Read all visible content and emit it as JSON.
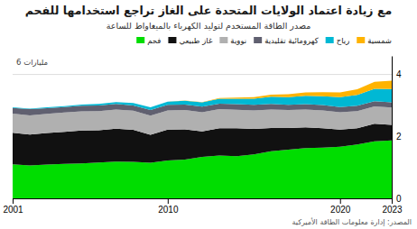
{
  "chart_data": {
    "type": "area",
    "title": "مع زيادة اعتماد الولايات المتحدة على الغاز تراجع استخدامها للفحم",
    "subtitle": "مصدر الطاقة المستخدم لتوليد الكهرباء بالميغاواط للساعة",
    "ylabel": "6 مليارات",
    "source": "المصدر: إدارة معلومات الطاقة الأميركية",
    "x": [
      2001,
      2002,
      2003,
      2004,
      2005,
      2006,
      2007,
      2008,
      2009,
      2010,
      2011,
      2012,
      2013,
      2014,
      2015,
      2016,
      2017,
      2018,
      2019,
      2020,
      2021,
      2022,
      2023
    ],
    "series": [
      {
        "name": "فحم",
        "color": "#00dd00",
        "values": [
          1.1,
          1.06,
          1.09,
          1.11,
          1.13,
          1.16,
          1.19,
          1.18,
          1.15,
          1.22,
          1.25,
          1.34,
          1.38,
          1.36,
          1.42,
          1.52,
          1.57,
          1.62,
          1.64,
          1.67,
          1.74,
          1.84,
          1.87
        ]
      },
      {
        "name": "غاز طبيعي",
        "color": "#111111",
        "values": [
          1.02,
          1.0,
          1.02,
          1.04,
          1.06,
          1.04,
          1.06,
          1.03,
          0.9,
          1.0,
          0.98,
          0.82,
          0.88,
          0.9,
          0.82,
          0.75,
          0.7,
          0.67,
          0.62,
          0.55,
          0.52,
          0.57,
          0.5
        ]
      },
      {
        "name": "نووية",
        "color": "#b0b0b0",
        "values": [
          0.62,
          0.62,
          0.62,
          0.62,
          0.62,
          0.62,
          0.62,
          0.62,
          0.62,
          0.62,
          0.62,
          0.62,
          0.62,
          0.6,
          0.6,
          0.6,
          0.58,
          0.58,
          0.58,
          0.56,
          0.56,
          0.56,
          0.56
        ]
      },
      {
        "name": "كهرومائية تقليدية",
        "color": "#606070",
        "values": [
          0.18,
          0.2,
          0.18,
          0.18,
          0.18,
          0.18,
          0.18,
          0.17,
          0.18,
          0.18,
          0.18,
          0.18,
          0.18,
          0.18,
          0.18,
          0.18,
          0.17,
          0.17,
          0.17,
          0.17,
          0.17,
          0.17,
          0.17
        ]
      },
      {
        "name": "رياح",
        "color": "#00b8d4",
        "values": [
          0.02,
          0.02,
          0.03,
          0.03,
          0.04,
          0.05,
          0.06,
          0.08,
          0.09,
          0.1,
          0.12,
          0.14,
          0.16,
          0.18,
          0.2,
          0.23,
          0.25,
          0.27,
          0.29,
          0.32,
          0.35,
          0.4,
          0.43
        ]
      },
      {
        "name": "شمسية",
        "color": "#ffb300",
        "values": [
          0.0,
          0.0,
          0.0,
          0.0,
          0.0,
          0.0,
          0.0,
          0.0,
          0.0,
          0.0,
          0.01,
          0.01,
          0.02,
          0.03,
          0.05,
          0.07,
          0.09,
          0.11,
          0.13,
          0.15,
          0.18,
          0.22,
          0.27
        ]
      }
    ],
    "xlim": [
      2001,
      2023
    ],
    "xticks": [
      2001,
      2010,
      2020,
      2023
    ],
    "ylim": [
      0,
      4.6
    ],
    "yticks": [
      0,
      2,
      4
    ],
    "stacked": true,
    "grid": true,
    "legend": "upper right"
  }
}
